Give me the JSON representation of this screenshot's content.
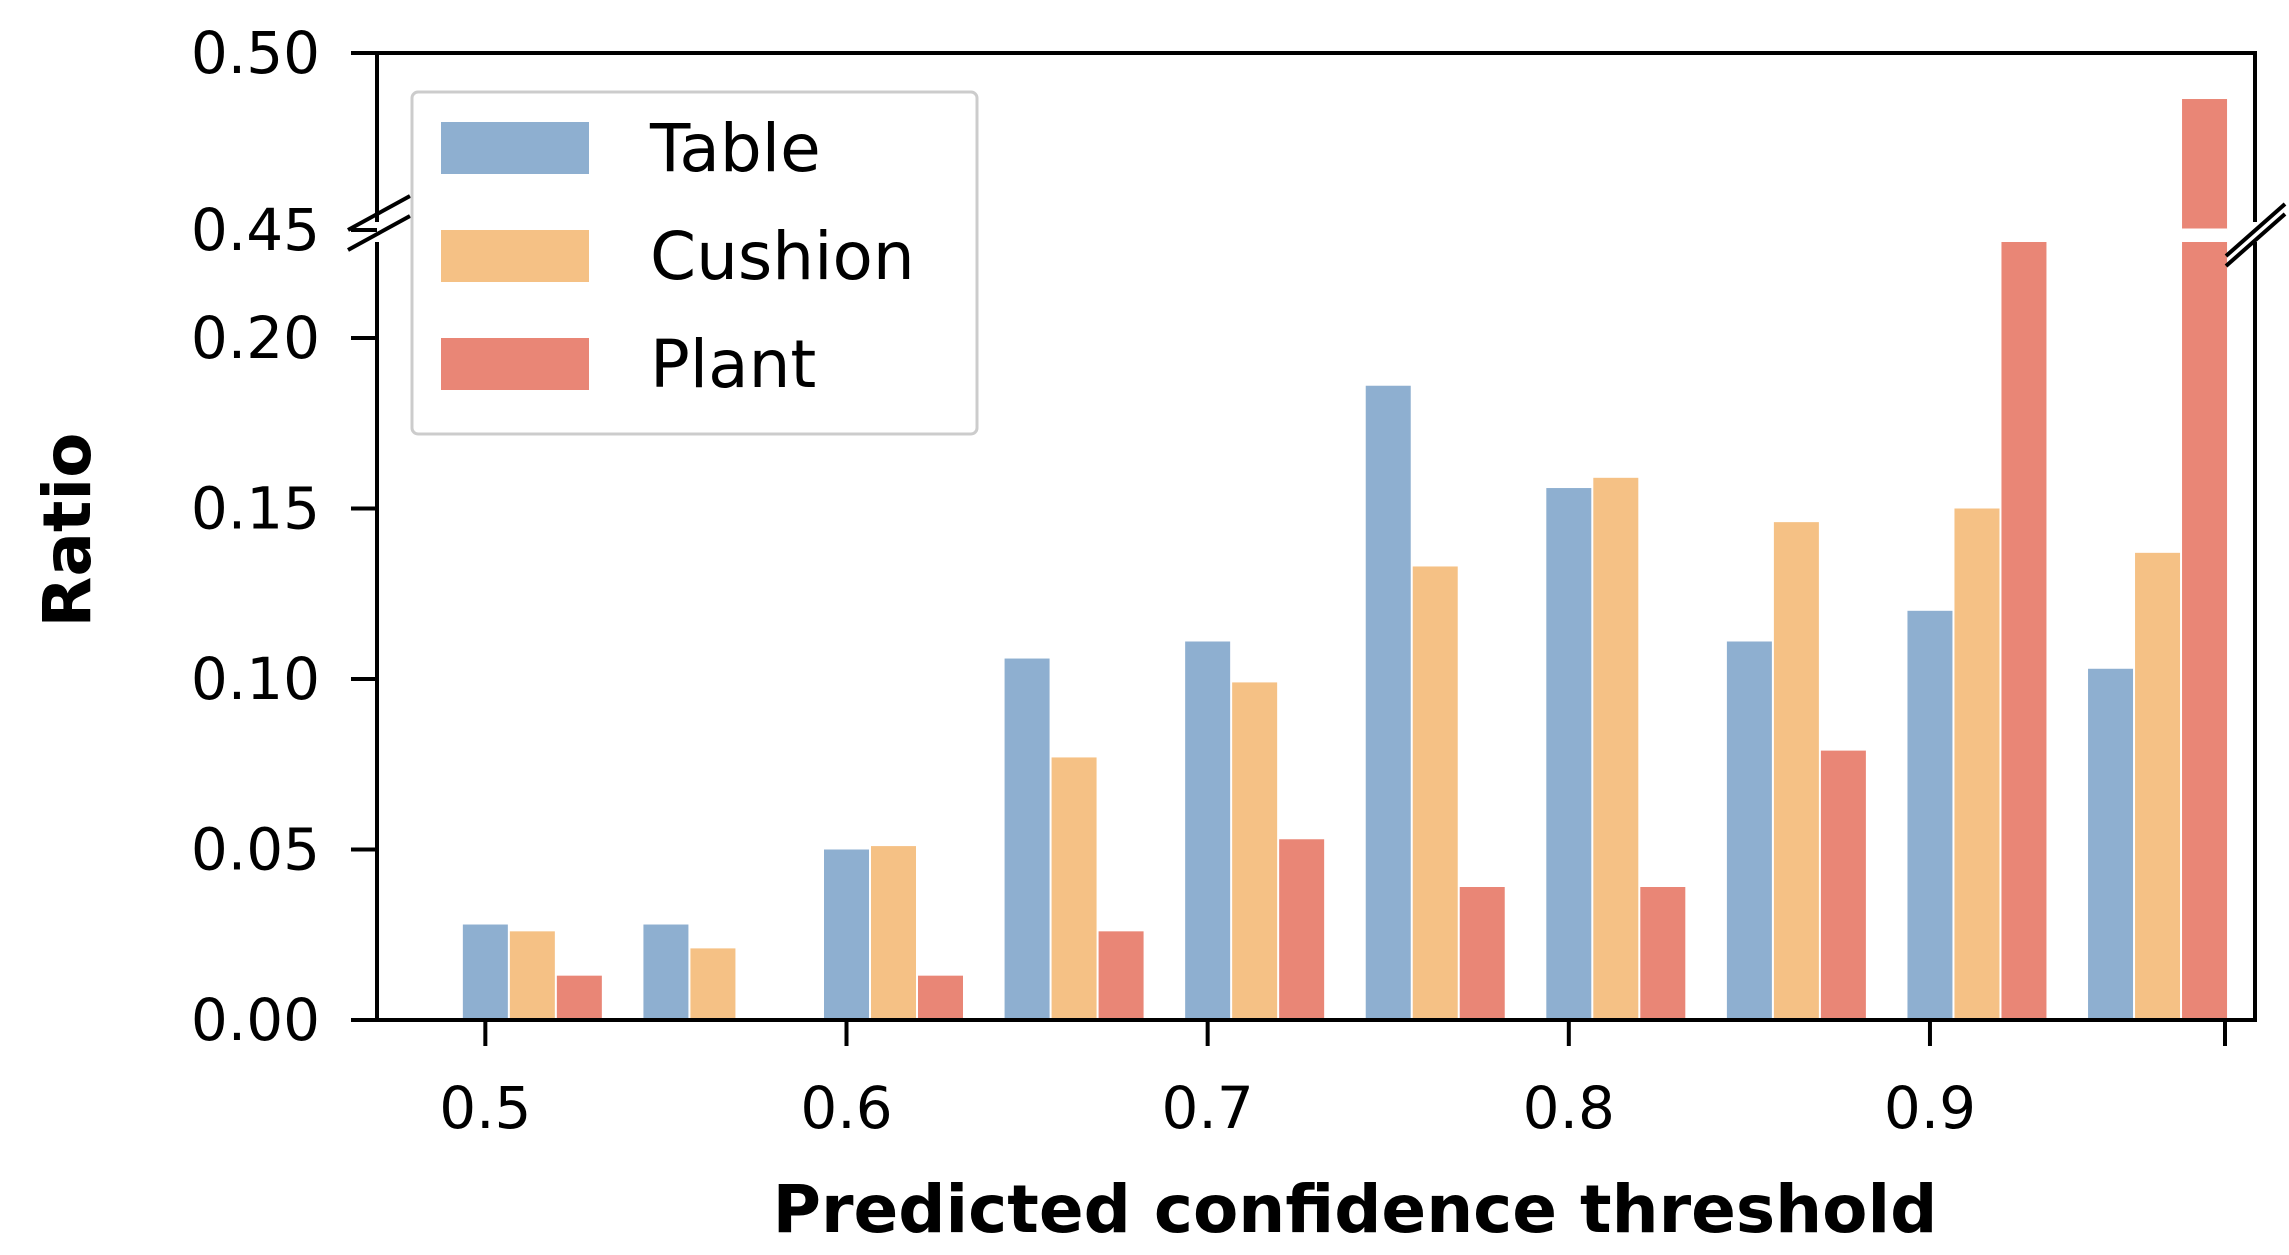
{
  "chart_data": {
    "type": "bar",
    "xlabel": "Predicted confidence threshold",
    "ylabel": "Ratio",
    "categories": [
      0.5,
      0.55,
      0.6,
      0.65,
      0.7,
      0.75,
      0.8,
      0.85,
      0.9,
      0.95
    ],
    "series": [
      {
        "name": "Table",
        "color": "#8eafd0",
        "values": [
          0.028,
          0.028,
          0.05,
          0.106,
          0.111,
          0.186,
          0.156,
          0.111,
          0.12,
          0.103
        ]
      },
      {
        "name": "Cushion",
        "color": "#f5c185",
        "values": [
          0.026,
          0.021,
          0.051,
          0.077,
          0.099,
          0.133,
          0.159,
          0.146,
          0.15,
          0.137
        ]
      },
      {
        "name": "Plant",
        "color": "#e98676",
        "values": [
          0.013,
          0.0,
          0.013,
          0.026,
          0.053,
          0.039,
          0.039,
          0.079,
          0.45,
          0.487
        ]
      }
    ],
    "x_ticks": [
      "0.5",
      "0.6",
      "0.7",
      "0.8",
      "0.9"
    ],
    "x_tick_values": [
      0.5,
      0.6,
      0.7,
      0.8,
      0.9
    ],
    "xlim": [
      0.47,
      0.99
    ],
    "y_ticks_lower": [
      "0.00",
      "0.05",
      "0.10",
      "0.15",
      "0.20"
    ],
    "y_tick_values_lower": [
      0.0,
      0.05,
      0.1,
      0.15,
      0.2
    ],
    "y_ticks_upper": [
      "0.45",
      "0.50"
    ],
    "y_tick_values_upper": [
      0.45,
      0.5
    ],
    "broken_y_axis": {
      "lower_range": [
        0,
        0.22
      ],
      "upper_range": [
        0.45,
        0.5
      ]
    },
    "legend_position": "top-left",
    "grid": false
  }
}
